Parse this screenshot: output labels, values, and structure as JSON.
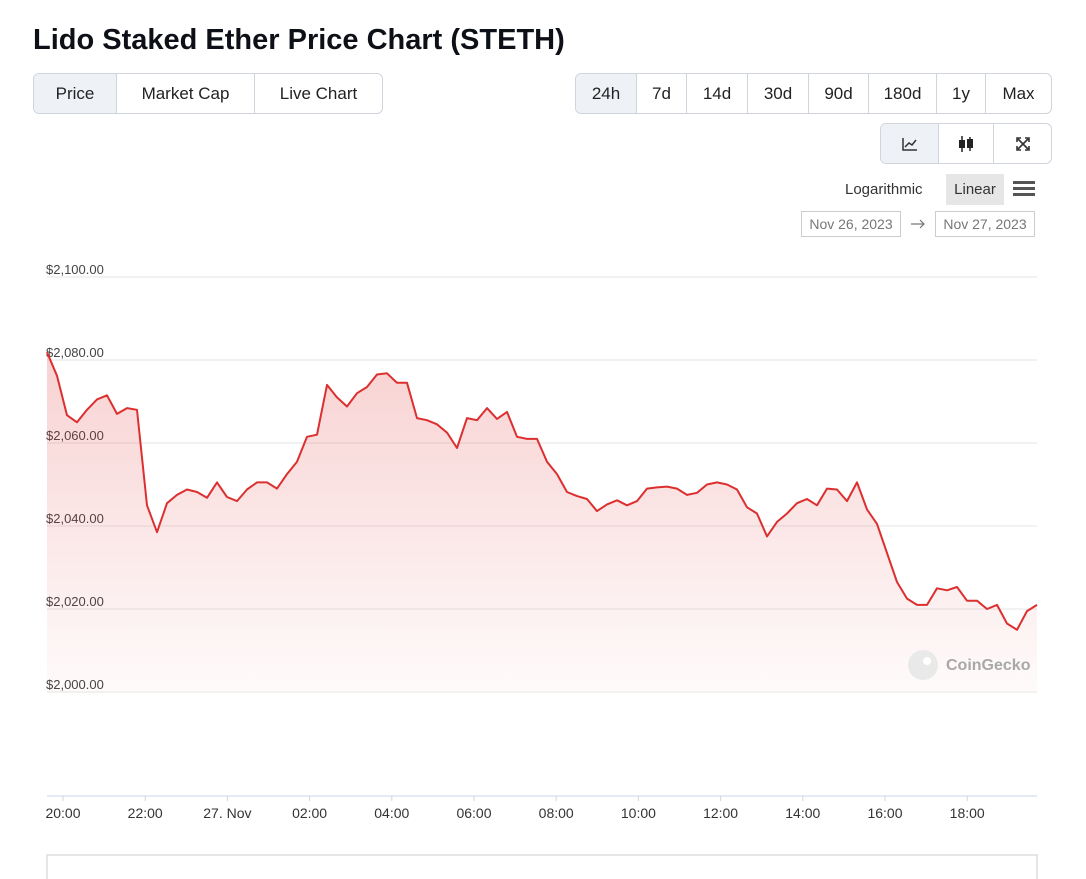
{
  "page": {
    "title": "Lido Staked Ether Price Chart (STETH)",
    "tabs": [
      "Price",
      "Market Cap",
      "Live Chart"
    ],
    "ranges": [
      "24h",
      "7d",
      "14d",
      "30d",
      "90d",
      "180d",
      "1y",
      "Max"
    ],
    "scales": [
      "Logarithmic",
      "Linear"
    ],
    "date_from": "Nov 26, 2023",
    "date_to": "Nov 27, 2023",
    "watermark": "CoinGecko"
  },
  "chart_data": {
    "type": "line",
    "xticks": [
      "20:00",
      "22:00",
      "27. Nov",
      "02:00",
      "04:00",
      "06:00",
      "08:00",
      "10:00",
      "12:00",
      "14:00",
      "16:00",
      "18:00"
    ],
    "series": [
      {
        "color": "#dc2f2f",
        "values": [
          2081.9,
          2076.2,
          2066.7,
          2065.0,
          2068.0,
          2070.5,
          2071.5,
          2067.0,
          2068.4,
          2068.0,
          2045.0,
          2038.5,
          2045.5,
          2047.5,
          2048.8,
          2048.2,
          2046.8,
          2050.5,
          2047.0,
          2046.0,
          2048.8,
          2050.5,
          2050.5,
          2049.0,
          2052.5,
          2055.5,
          2061.5,
          2062.0,
          2074.0,
          2071.0,
          2068.8,
          2072.0,
          2073.5,
          2076.5,
          2076.8,
          2074.5,
          2074.5,
          2066.0,
          2065.5,
          2064.5,
          2062.5,
          2058.8,
          2066.0,
          2065.5,
          2068.4,
          2065.8,
          2067.5,
          2061.5,
          2061.0,
          2061.0,
          2055.5,
          2052.5,
          2048.2,
          2047.2,
          2046.5,
          2043.6,
          2045.2,
          2046.2,
          2045.0,
          2046.0,
          2049.0,
          2049.3,
          2049.5,
          2049.0,
          2047.5,
          2048.0,
          2050.0,
          2050.5,
          2050.0,
          2048.8,
          2044.5,
          2043.0,
          2037.5,
          2041.0,
          2043.0,
          2045.5,
          2046.5,
          2045.0,
          2049.0,
          2048.8,
          2046.0,
          2050.5,
          2044.0,
          2040.5,
          2033.5,
          2026.5,
          2022.5,
          2021.0,
          2021.0,
          2025.0,
          2024.5,
          2025.3,
          2022.0,
          2022.0,
          2020.0,
          2021.0,
          2016.5,
          2015.0,
          2019.5,
          2021.0
        ]
      }
    ],
    "ylim": [
      2000,
      2100
    ],
    "yticks": [
      {
        "value": 2000,
        "label": "$2,000.00"
      },
      {
        "value": 2020,
        "label": "$2,020.00"
      },
      {
        "value": 2040,
        "label": "$2,040.00"
      },
      {
        "value": 2060,
        "label": "$2,060.00"
      },
      {
        "value": 2080,
        "label": "$2,080.00"
      },
      {
        "value": 2100,
        "label": "$2,100.00"
      }
    ],
    "grid": true
  }
}
